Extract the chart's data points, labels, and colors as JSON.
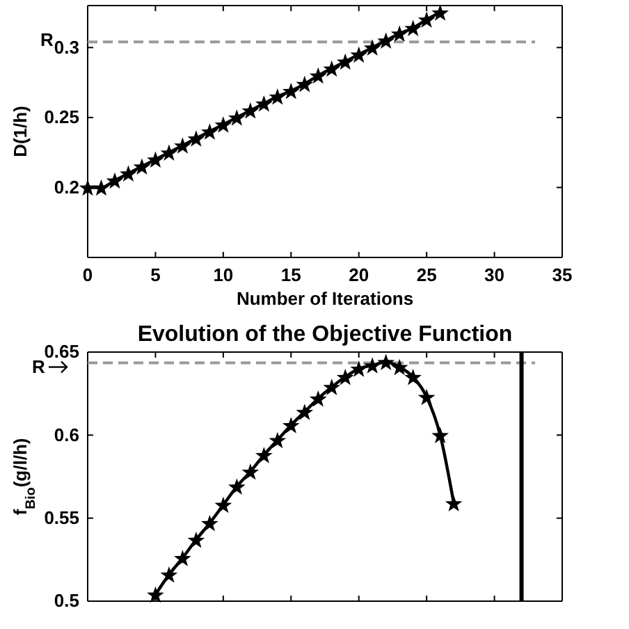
{
  "chart_data": [
    {
      "type": "line",
      "xlabel": "Number of Iterations",
      "ylabel": "D(1/h)",
      "xlim": [
        0,
        35
      ],
      "ylim": [
        0.15,
        0.33
      ],
      "xticks": [
        0,
        5,
        10,
        15,
        20,
        25,
        30,
        35
      ],
      "yticks": [
        0.2,
        0.25,
        0.3
      ],
      "marker": "star",
      "line_style": "solid",
      "grid": false,
      "x": [
        0,
        1,
        2,
        3,
        4,
        5,
        6,
        7,
        8,
        9,
        10,
        11,
        12,
        13,
        14,
        15,
        16,
        17,
        18,
        19,
        20,
        21,
        22,
        23,
        24,
        25,
        26
      ],
      "series": [
        {
          "color": "#000000",
          "values": [
            0.2,
            0.2,
            0.205,
            0.21,
            0.215,
            0.22,
            0.225,
            0.23,
            0.235,
            0.24,
            0.245,
            0.25,
            0.255,
            0.26,
            0.265,
            0.269,
            0.274,
            0.28,
            0.285,
            0.29,
            0.295,
            0.3,
            0.305,
            0.31,
            0.314,
            0.32,
            0.325
          ]
        }
      ],
      "ref_lines": [
        {
          "axis": "y",
          "value": 0.304,
          "label": "R",
          "color": "#999999",
          "line_style": "dashed"
        }
      ]
    },
    {
      "type": "line",
      "title": "Evolution of the Objective Function",
      "ylabel": "f$_{Bio}$(g/l/h)",
      "xlim": [
        0,
        35
      ],
      "ylim": [
        0.5,
        0.65
      ],
      "xticks": [
        {
          "value": 0,
          "label": null
        },
        {
          "value": 5,
          "label": null
        },
        {
          "value": 10,
          "label": null
        },
        {
          "value": 15,
          "label": null
        },
        {
          "value": 20,
          "label": null
        },
        {
          "value": 25,
          "label": null
        },
        {
          "value": 30,
          "label": null
        },
        {
          "value": 35,
          "label": null
        }
      ],
      "yticks": [
        0.5,
        0.55,
        0.6,
        0.65
      ],
      "tick_labels": "y",
      "marker": "star",
      "line_style": "solid",
      "grid": false,
      "x": [
        5,
        6,
        7,
        8,
        9,
        10,
        11,
        12,
        13,
        14,
        15,
        16,
        17,
        18,
        19,
        20,
        21,
        22,
        23,
        24,
        25,
        26,
        27
      ],
      "series": [
        {
          "color": "#000000",
          "values": [
            0.504,
            0.516,
            0.526,
            0.537,
            0.547,
            0.558,
            0.569,
            0.578,
            0.588,
            0.597,
            0.606,
            0.614,
            0.622,
            0.629,
            0.635,
            0.64,
            0.642,
            0.644,
            0.641,
            0.635,
            0.623,
            0.6,
            0.559
          ]
        }
      ],
      "ref_lines": [
        {
          "axis": "y",
          "value": 0.6435,
          "label": "R",
          "color": "#999999",
          "line_style": "dashed"
        },
        {
          "axis": "x",
          "value": 32,
          "color": "#000000",
          "line_style": "solid"
        }
      ]
    }
  ]
}
